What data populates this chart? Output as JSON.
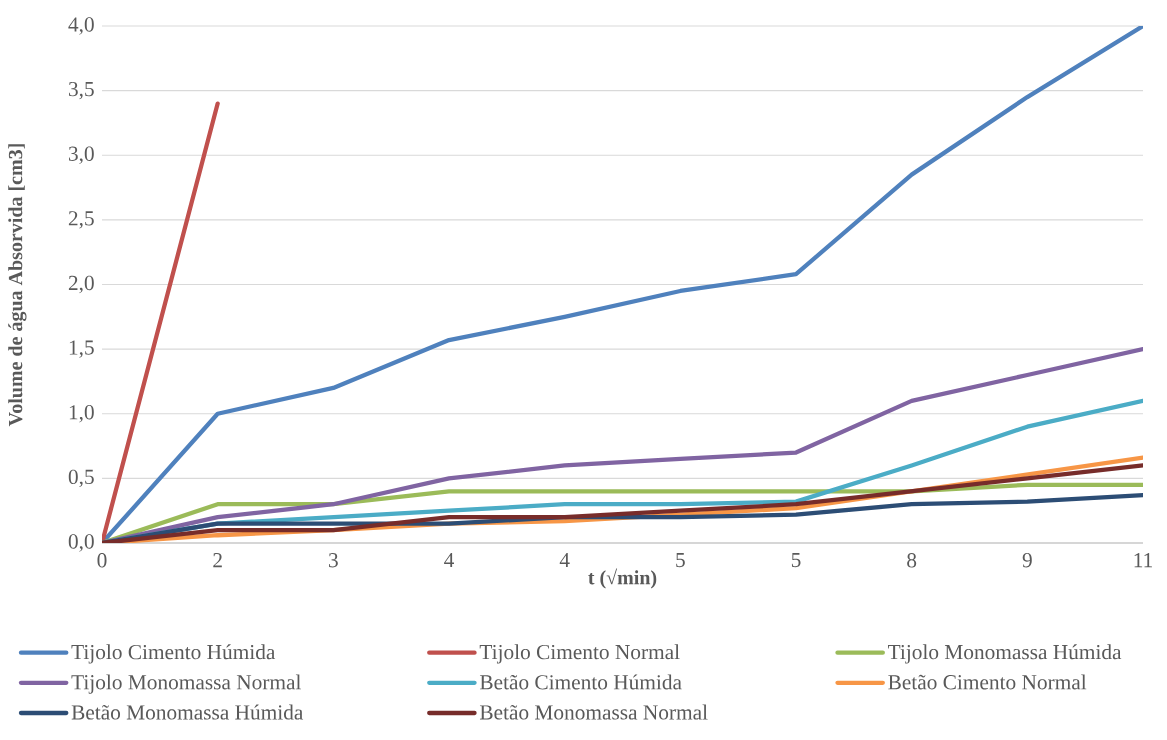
{
  "chart_data": {
    "type": "line",
    "xlabel": "t (√min)",
    "ylabel": "Volume de água Absorvida  [cm3]",
    "categories": [
      "0",
      "2",
      "3",
      "4",
      "4",
      "5",
      "5",
      "8",
      "9",
      "11"
    ],
    "ylim": [
      0,
      4
    ],
    "yticks": [
      {
        "value": 0,
        "label": "0,0"
      },
      {
        "value": 0.5,
        "label": "0,5"
      },
      {
        "value": 1,
        "label": "1,0"
      },
      {
        "value": 1.5,
        "label": "1,5"
      },
      {
        "value": 2,
        "label": "2,0"
      },
      {
        "value": 2.5,
        "label": "2,5"
      },
      {
        "value": 3,
        "label": "3,0"
      },
      {
        "value": 3.5,
        "label": "3,5"
      },
      {
        "value": 4,
        "label": "4,0"
      }
    ],
    "grid": "y",
    "legend": "bottom",
    "marker": "none",
    "line_style": "solid",
    "series": [
      {
        "name": "Tijolo Cimento Húmida",
        "color": "#4f81bd",
        "values": [
          0,
          1.0,
          1.2,
          1.57,
          1.75,
          1.95,
          2.08,
          2.85,
          3.45,
          4.0
        ]
      },
      {
        "name": "Tijolo Cimento Normal",
        "color": "#c0504d",
        "values": [
          0,
          3.4,
          null,
          null,
          null,
          null,
          null,
          null,
          null,
          null
        ]
      },
      {
        "name": "Tijolo Monomassa Húmida",
        "color": "#9bbb59",
        "values": [
          0,
          0.3,
          0.3,
          0.4,
          0.4,
          0.4,
          0.4,
          0.4,
          0.45,
          0.45
        ]
      },
      {
        "name": "Tijolo Monomassa Normal",
        "color": "#8064a2",
        "values": [
          0,
          0.2,
          0.3,
          0.5,
          0.6,
          0.65,
          0.7,
          1.1,
          1.3,
          1.5
        ]
      },
      {
        "name": "Betão Cimento Húmida",
        "color": "#4bacc6",
        "values": [
          0,
          0.15,
          0.2,
          0.25,
          0.3,
          0.3,
          0.32,
          0.6,
          0.9,
          1.1
        ]
      },
      {
        "name": "Betão Cimento Normal",
        "color": "#f79646",
        "values": [
          0,
          0.06,
          0.1,
          0.15,
          0.17,
          0.22,
          0.27,
          0.4,
          0.53,
          0.66
        ]
      },
      {
        "name": "Betão Monomassa Húmida",
        "color": "#2c4d75",
        "values": [
          0,
          0.15,
          0.15,
          0.15,
          0.2,
          0.2,
          0.22,
          0.3,
          0.32,
          0.37
        ]
      },
      {
        "name": "Betão Monomassa Normal",
        "color": "#772c2a",
        "values": [
          0,
          0.1,
          0.1,
          0.2,
          0.2,
          0.25,
          0.3,
          0.4,
          0.5,
          0.6
        ]
      }
    ]
  }
}
